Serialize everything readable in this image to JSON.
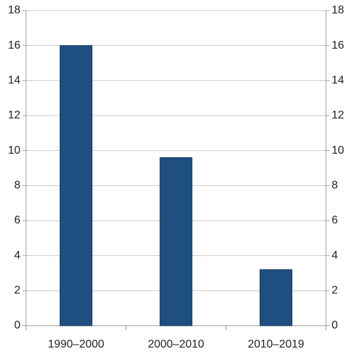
{
  "chart_data": {
    "type": "bar",
    "categories": [
      "1990–2000",
      "2000–2010",
      "2010–2019"
    ],
    "values": [
      16,
      9.6,
      3.2
    ],
    "color": "#1f4e80",
    "ylim": [
      0,
      18
    ],
    "yticks": [
      0,
      2,
      4,
      6,
      8,
      10,
      12,
      14,
      16,
      18
    ],
    "y2lim": [
      0,
      18
    ],
    "y2ticks": [
      0,
      2,
      4,
      6,
      8,
      10,
      12,
      14,
      16,
      18
    ],
    "grid": true
  }
}
